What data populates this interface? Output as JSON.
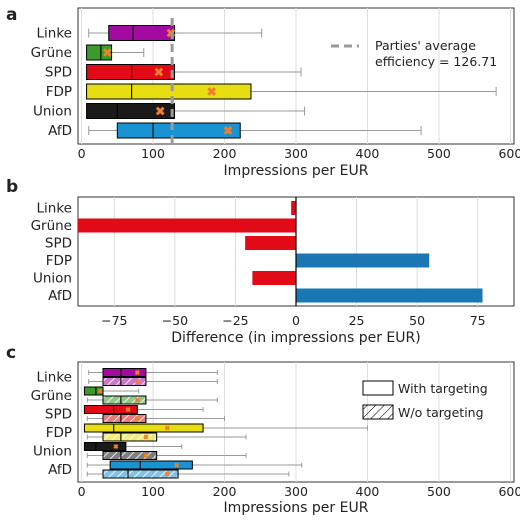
{
  "colors": {
    "Linke": "#a20aa2",
    "Grüne": "#3a9a2a",
    "SPD": "#e20a17",
    "FDP": "#e6de10",
    "Union": "#1a1a1a",
    "AfD": "#1a93d2",
    "diff_negative": "#e20a17",
    "diff_positive": "#1a77b4",
    "mean_marker": "#f07f2a",
    "average_line": "#999999"
  },
  "chart_data": [
    {
      "panel_label": "a",
      "type": "box",
      "categories": [
        "Linke",
        "Grüne",
        "SPD",
        "FDP",
        "Union",
        "AfD"
      ],
      "boxes": [
        {
          "name": "Linke",
          "whisker_low": 10,
          "q1": 38,
          "median": 72,
          "q3": 130,
          "whisker_high": 252,
          "mean": 125
        },
        {
          "name": "Grüne",
          "whisker_low": 7,
          "q1": 7,
          "median": 27,
          "q3": 42,
          "whisker_high": 87,
          "mean": 36
        },
        {
          "name": "SPD",
          "whisker_low": 7,
          "q1": 7,
          "median": 70,
          "q3": 130,
          "whisker_high": 307,
          "mean": 108
        },
        {
          "name": "FDP",
          "whisker_low": 7,
          "q1": 7,
          "median": 70,
          "q3": 237,
          "whisker_high": 580,
          "mean": 182
        },
        {
          "name": "Union",
          "whisker_low": 7,
          "q1": 7,
          "median": 50,
          "q3": 130,
          "whisker_high": 312,
          "mean": 110
        },
        {
          "name": "AfD",
          "whisker_low": 10,
          "q1": 50,
          "median": 100,
          "q3": 222,
          "whisker_high": 475,
          "mean": 205
        }
      ],
      "reference_line": {
        "value": 126.71,
        "label_line1": "Parties' average",
        "label_line2": "efficiency = 126.71"
      },
      "xlabel": "Impressions per EUR",
      "xlim": [
        -5,
        605
      ],
      "xticks": [
        "0",
        "100",
        "200",
        "300",
        "400",
        "500",
        "600"
      ],
      "xtick_values": [
        0,
        100,
        200,
        300,
        400,
        500,
        600
      ],
      "grid": true
    },
    {
      "panel_label": "b",
      "type": "bar",
      "orientation": "horizontal",
      "categories": [
        "Linke",
        "Grüne",
        "SPD",
        "FDP",
        "Union",
        "AfD"
      ],
      "values": [
        -2,
        -90,
        -21,
        55,
        -18,
        77
      ],
      "xlabel": "Difference (in impressions per EUR)",
      "xlim": [
        -90,
        90
      ],
      "xticks": [
        "−75",
        "−50",
        "−25",
        "0",
        "25",
        "50",
        "75"
      ],
      "xtick_values": [
        -75,
        -50,
        -25,
        0,
        25,
        50,
        75
      ],
      "grid": true
    },
    {
      "panel_label": "c",
      "type": "box",
      "categories": [
        "Linke",
        "Grüne",
        "SPD",
        "FDP",
        "Union",
        "AfD"
      ],
      "series": [
        {
          "name": "With targeting",
          "boxes": [
            {
              "name": "Linke",
              "whisker_low": 10,
              "q1": 30,
              "median": 55,
              "q3": 90,
              "whisker_high": 190,
              "mean": 78
            },
            {
              "name": "Grüne",
              "whisker_low": 4,
              "q1": 4,
              "median": 20,
              "q3": 30,
              "whisker_high": 80,
              "mean": 26
            },
            {
              "name": "SPD",
              "whisker_low": 4,
              "q1": 4,
              "median": 45,
              "q3": 78,
              "whisker_high": 170,
              "mean": 65
            },
            {
              "name": "FDP",
              "whisker_low": 4,
              "q1": 4,
              "median": 45,
              "q3": 170,
              "whisker_high": 400,
              "mean": 120
            },
            {
              "name": "Union",
              "whisker_low": 4,
              "q1": 4,
              "median": 20,
              "q3": 62,
              "whisker_high": 140,
              "mean": 48
            },
            {
              "name": "AfD",
              "whisker_low": 8,
              "q1": 40,
              "median": 82,
              "q3": 155,
              "whisker_high": 308,
              "mean": 133
            }
          ]
        },
        {
          "name": "W/o targeting",
          "boxes": [
            {
              "name": "Linke",
              "whisker_low": 10,
              "q1": 30,
              "median": 55,
              "q3": 90,
              "whisker_high": 190,
              "mean": 78
            },
            {
              "name": "Grüne",
              "whisker_low": 8,
              "q1": 30,
              "median": 55,
              "q3": 90,
              "whisker_high": 190,
              "mean": 78
            },
            {
              "name": "SPD",
              "whisker_low": 8,
              "q1": 30,
              "median": 55,
              "q3": 90,
              "whisker_high": 200,
              "mean": 78
            },
            {
              "name": "FDP",
              "whisker_low": 8,
              "q1": 30,
              "median": 55,
              "q3": 105,
              "whisker_high": 230,
              "mean": 90
            },
            {
              "name": "Union",
              "whisker_low": 8,
              "q1": 30,
              "median": 55,
              "q3": 105,
              "whisker_high": 230,
              "mean": 90
            },
            {
              "name": "AfD",
              "whisker_low": 8,
              "q1": 30,
              "median": 65,
              "q3": 135,
              "whisker_high": 290,
              "mean": 120
            }
          ]
        }
      ],
      "xlabel": "Impressions per EUR",
      "xlim": [
        -5,
        605
      ],
      "xticks": [
        "0",
        "100",
        "200",
        "300",
        "400",
        "500",
        "600"
      ],
      "xtick_values": [
        0,
        100,
        200,
        300,
        400,
        500,
        600
      ],
      "legend_position": "top-right",
      "grid": true
    }
  ]
}
